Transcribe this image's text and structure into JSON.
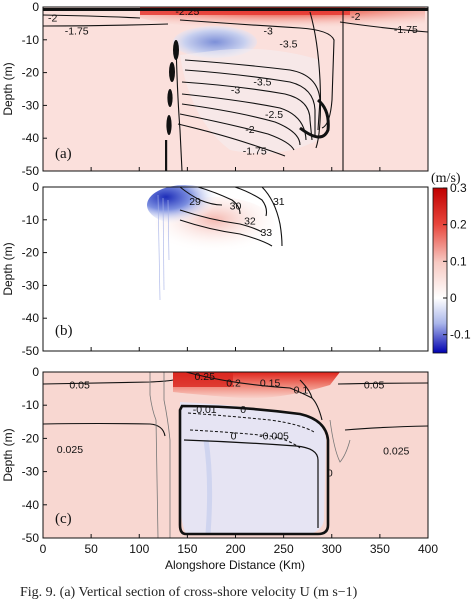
{
  "chart_data": [
    {
      "type": "heatmap",
      "panel_label": "(a)",
      "ylabel": "Depth (m)",
      "xlim": [
        0,
        400
      ],
      "ylim": [
        -50,
        0
      ],
      "yticks": [
        0,
        -10,
        -20,
        -30,
        -40,
        -50
      ],
      "contours": [
        {
          "label": "-2.25",
          "x": 150,
          "y": -1.5
        },
        {
          "label": "-2",
          "x": 10,
          "y": -3.5
        },
        {
          "label": "-1.75",
          "x": 35,
          "y": -7.5
        },
        {
          "label": "-2",
          "x": 325,
          "y": -3
        },
        {
          "label": "-1.75",
          "x": 377,
          "y": -7
        },
        {
          "label": "-3",
          "x": 234,
          "y": -7.5
        },
        {
          "label": "-3.5",
          "x": 255,
          "y": -11.5
        },
        {
          "label": "-3.5",
          "x": 228,
          "y": -23
        },
        {
          "label": "-3",
          "x": 200,
          "y": -25.5
        },
        {
          "label": "-2.5",
          "x": 240,
          "y": -33
        },
        {
          "label": "-2",
          "x": 215,
          "y": -37.5
        },
        {
          "label": "-1.75",
          "x": 220,
          "y": -44
        }
      ]
    },
    {
      "type": "heatmap",
      "panel_label": "(b)",
      "ylabel": "Depth (m)",
      "xlim": [
        0,
        400
      ],
      "ylim": [
        -50,
        0
      ],
      "yticks": [
        0,
        -10,
        -20,
        -30,
        -40,
        -50
      ],
      "contours": [
        {
          "label": "29",
          "x": 158,
          "y": -4.5
        },
        {
          "label": "30",
          "x": 200,
          "y": -6
        },
        {
          "label": "31",
          "x": 245,
          "y": -4.5
        },
        {
          "label": "32",
          "x": 215,
          "y": -10.5
        },
        {
          "label": "33",
          "x": 232,
          "y": -14
        }
      ],
      "colorbar": {
        "title": "(m/s)",
        "range": [
          -0.15,
          0.3
        ],
        "ticks": [
          "0.3",
          "0.2",
          "0.1",
          "0",
          "-0.1"
        ],
        "tick_values": [
          0.3,
          0.2,
          0.1,
          0,
          -0.1
        ]
      }
    },
    {
      "type": "heatmap",
      "panel_label": "(c)",
      "ylabel": "Depth (m)",
      "xlabel": "Alongshore Distance (Km)",
      "xlim": [
        0,
        400
      ],
      "ylim": [
        -50,
        0
      ],
      "xticks": [
        0,
        50,
        100,
        150,
        200,
        250,
        300,
        350,
        400
      ],
      "yticks": [
        0,
        -10,
        -20,
        -30,
        -40,
        -50
      ],
      "contours": [
        {
          "label": "0.05",
          "x": 38,
          "y": -4
        },
        {
          "label": "0.25",
          "x": 168,
          "y": -1.5
        },
        {
          "label": "0.2",
          "x": 198,
          "y": -3.5
        },
        {
          "label": "0.15",
          "x": 236,
          "y": -3.5
        },
        {
          "label": "0.1",
          "x": 268,
          "y": -5.5
        },
        {
          "label": "0.05",
          "x": 344,
          "y": -4
        },
        {
          "label": "-0.01",
          "x": 168,
          "y": -11.5
        },
        {
          "label": "0",
          "x": 208,
          "y": -11.5
        },
        {
          "label": "0",
          "x": 198,
          "y": -19.5
        },
        {
          "label": "-0.005",
          "x": 240,
          "y": -19.5
        },
        {
          "label": "0",
          "x": 298,
          "y": -30.5
        },
        {
          "label": "0.025",
          "x": 28,
          "y": -23.5
        },
        {
          "label": "0.025",
          "x": 367,
          "y": -24
        }
      ]
    }
  ],
  "caption": "Fig. 9. (a) Vertical section of cross-shore velocity U (m s−1)"
}
